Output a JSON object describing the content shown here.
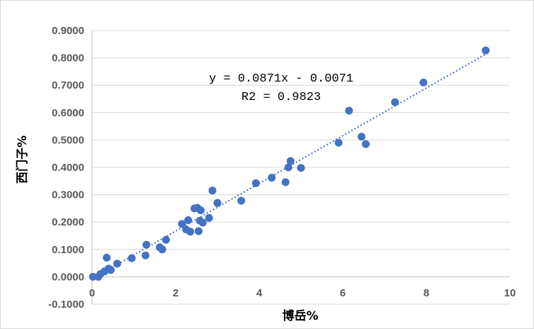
{
  "chart_data": {
    "type": "scatter",
    "xlabel": "博岳%",
    "ylabel": "西门子%",
    "xlim": [
      0,
      10
    ],
    "ylim": [
      -0.1,
      0.9
    ],
    "x_ticks": [
      0,
      2,
      4,
      6,
      8,
      10
    ],
    "x_tick_labels": [
      "0",
      "2",
      "4",
      "6",
      "8",
      "10"
    ],
    "y_ticks": [
      -0.1,
      0.0,
      0.1,
      0.2,
      0.3,
      0.4,
      0.5,
      0.6,
      0.7,
      0.8,
      0.9
    ],
    "y_tick_labels": [
      "-0.1000",
      "0.0000",
      "0.1000",
      "0.2000",
      "0.3000",
      "0.4000",
      "0.5000",
      "0.6000",
      "0.7000",
      "0.8000",
      "0.9000"
    ],
    "gridlines": "horizontal",
    "marker_color": "#4472c4",
    "trendline": {
      "type": "linear",
      "slope": 0.0871,
      "intercept": -0.0071,
      "style": "dotted",
      "color": "#4472c4",
      "equation_label": "y = 0.0871x - 0.0071",
      "r2_label": "R2 = 0.9823"
    },
    "series": [
      {
        "name": "points",
        "points": [
          [
            0.02,
            0.0
          ],
          [
            0.15,
            0.0
          ],
          [
            0.2,
            0.01
          ],
          [
            0.3,
            0.02
          ],
          [
            0.4,
            0.03
          ],
          [
            0.45,
            0.025
          ],
          [
            0.35,
            0.07
          ],
          [
            0.6,
            0.048
          ],
          [
            0.95,
            0.068
          ],
          [
            1.28,
            0.078
          ],
          [
            1.3,
            0.117
          ],
          [
            1.62,
            0.108
          ],
          [
            1.68,
            0.1
          ],
          [
            1.77,
            0.135
          ],
          [
            2.15,
            0.193
          ],
          [
            2.25,
            0.173
          ],
          [
            2.3,
            0.207
          ],
          [
            2.35,
            0.165
          ],
          [
            2.45,
            0.25
          ],
          [
            2.52,
            0.252
          ],
          [
            2.55,
            0.167
          ],
          [
            2.6,
            0.243
          ],
          [
            2.58,
            0.205
          ],
          [
            2.65,
            0.198
          ],
          [
            2.8,
            0.215
          ],
          [
            2.88,
            0.315
          ],
          [
            3.0,
            0.27
          ],
          [
            3.57,
            0.278
          ],
          [
            3.92,
            0.342
          ],
          [
            4.3,
            0.362
          ],
          [
            4.63,
            0.346
          ],
          [
            4.7,
            0.4
          ],
          [
            4.75,
            0.423
          ],
          [
            5.0,
            0.398
          ],
          [
            5.9,
            0.49
          ],
          [
            6.15,
            0.607
          ],
          [
            6.45,
            0.512
          ],
          [
            6.55,
            0.485
          ],
          [
            7.25,
            0.638
          ],
          [
            7.93,
            0.71
          ],
          [
            9.42,
            0.827
          ]
        ]
      }
    ]
  }
}
